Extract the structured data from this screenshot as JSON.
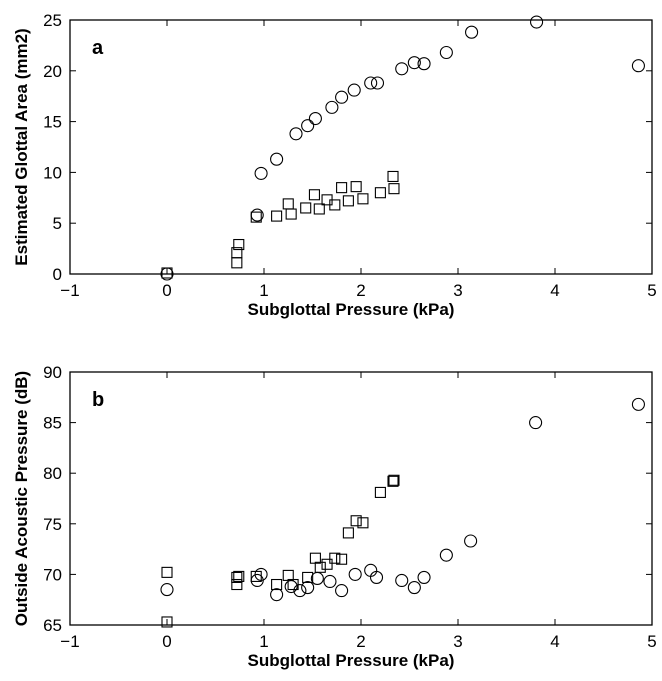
{
  "chart_data": [
    {
      "type": "scatter",
      "panel_label": "a",
      "xlabel": "Subglottal Pressure (kPa)",
      "ylabel": "Estimated Glottal Area (mm2)",
      "xlim": [
        -1,
        5
      ],
      "ylim": [
        0,
        25
      ],
      "xticks": [
        -1,
        0,
        1,
        2,
        3,
        4,
        5
      ],
      "yticks": [
        0,
        5,
        10,
        15,
        20,
        25
      ],
      "grid": false,
      "series": [
        {
          "marker": "circle",
          "points": [
            [
              0,
              0
            ],
            [
              0.93,
              5.8
            ],
            [
              0.97,
              9.9
            ],
            [
              1.13,
              11.3
            ],
            [
              1.33,
              13.8
            ],
            [
              1.45,
              14.6
            ],
            [
              1.53,
              15.3
            ],
            [
              1.7,
              16.4
            ],
            [
              1.8,
              17.4
            ],
            [
              1.93,
              18.1
            ],
            [
              2.1,
              18.8
            ],
            [
              2.17,
              18.8
            ],
            [
              2.42,
              20.2
            ],
            [
              2.55,
              20.8
            ],
            [
              2.65,
              20.7
            ],
            [
              2.88,
              21.8
            ],
            [
              3.14,
              23.8
            ],
            [
              3.81,
              24.8
            ],
            [
              4.86,
              20.5
            ]
          ]
        },
        {
          "marker": "square",
          "points": [
            [
              0,
              0.1
            ],
            [
              0.72,
              1.1
            ],
            [
              0.72,
              2.1
            ],
            [
              0.74,
              2.9
            ],
            [
              0.92,
              5.6
            ],
            [
              1.13,
              5.7
            ],
            [
              1.25,
              6.9
            ],
            [
              1.28,
              5.9
            ],
            [
              1.43,
              6.5
            ],
            [
              1.52,
              7.8
            ],
            [
              1.57,
              6.4
            ],
            [
              1.65,
              7.3
            ],
            [
              1.73,
              6.8
            ],
            [
              1.8,
              8.5
            ],
            [
              1.87,
              7.2
            ],
            [
              1.95,
              8.6
            ],
            [
              2.02,
              7.4
            ],
            [
              2.2,
              8.0
            ],
            [
              2.33,
              9.6
            ],
            [
              2.34,
              8.4
            ]
          ]
        }
      ]
    },
    {
      "type": "scatter",
      "panel_label": "b",
      "xlabel": "Subglottal Pressure (kPa)",
      "ylabel": "Outside Acoustic Pressure (dB)",
      "xlim": [
        -1,
        5
      ],
      "ylim": [
        65,
        90
      ],
      "xticks": [
        -1,
        0,
        1,
        2,
        3,
        4,
        5
      ],
      "yticks": [
        65,
        70,
        75,
        80,
        85,
        90
      ],
      "grid": false,
      "series": [
        {
          "marker": "circle",
          "points": [
            [
              0,
              68.5
            ],
            [
              0.93,
              69.4
            ],
            [
              0.97,
              70.0
            ],
            [
              1.13,
              68.0
            ],
            [
              1.28,
              68.8
            ],
            [
              1.37,
              68.4
            ],
            [
              1.45,
              68.7
            ],
            [
              1.55,
              69.6
            ],
            [
              1.68,
              69.3
            ],
            [
              1.8,
              68.4
            ],
            [
              1.94,
              70.0
            ],
            [
              2.1,
              70.4
            ],
            [
              2.16,
              69.7
            ],
            [
              2.42,
              69.4
            ],
            [
              2.55,
              68.7
            ],
            [
              2.65,
              69.7
            ],
            [
              2.88,
              71.9
            ],
            [
              3.13,
              73.3
            ],
            [
              3.8,
              85.0
            ],
            [
              4.86,
              86.8
            ]
          ]
        },
        {
          "marker": "square",
          "points": [
            [
              0,
              70.2
            ],
            [
              0,
              65.3
            ],
            [
              0.72,
              69.7
            ],
            [
              0.72,
              69.0
            ],
            [
              0.74,
              69.8
            ],
            [
              0.92,
              69.8
            ],
            [
              1.13,
              69.0
            ],
            [
              1.25,
              69.9
            ],
            [
              1.3,
              69.0
            ],
            [
              1.45,
              69.7
            ],
            [
              1.53,
              71.6
            ],
            [
              1.58,
              70.7
            ],
            [
              1.65,
              71.0
            ],
            [
              1.73,
              71.6
            ],
            [
              1.8,
              71.5
            ],
            [
              1.87,
              74.1
            ],
            [
              1.95,
              75.3
            ],
            [
              2.02,
              75.1
            ],
            [
              2.2,
              78.1
            ],
            [
              2.33,
              79.2
            ],
            [
              2.34,
              79.3
            ]
          ]
        }
      ]
    }
  ]
}
